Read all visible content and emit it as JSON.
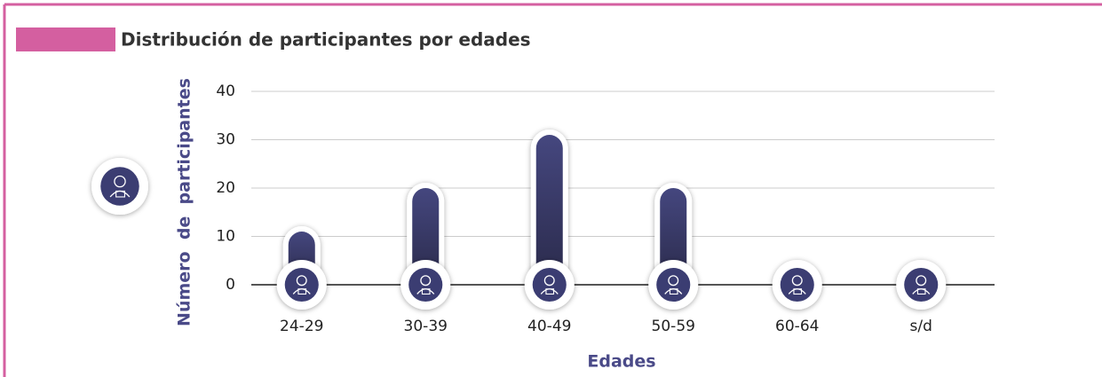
{
  "chart_data": {
    "type": "bar",
    "title": "Distribución de participantes por edades",
    "x_label": "Edades",
    "y_label": "Número  de  participantes",
    "categories": [
      "24-29",
      "30-39",
      "40-49",
      "50-59",
      "60-64",
      "s/d"
    ],
    "values": [
      11,
      20,
      31,
      20,
      1,
      0
    ],
    "color": "#3b3d72",
    "ylim": [
      0,
      40
    ],
    "yticks": [
      0,
      10,
      20,
      30,
      40
    ],
    "grid": true
  }
}
